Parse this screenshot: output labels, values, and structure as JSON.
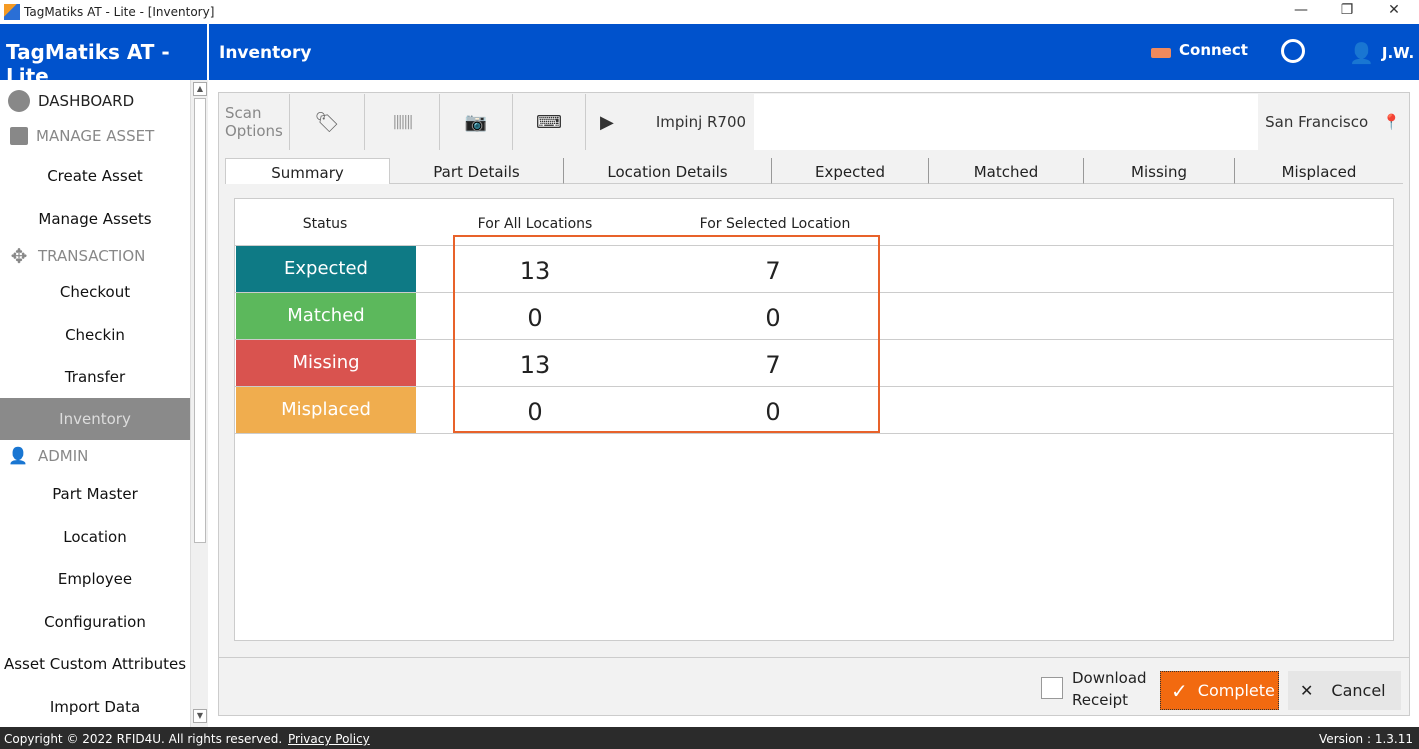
{
  "window": {
    "title": "TagMatiks AT - Lite - [Inventory]",
    "minimize": "—",
    "restore": "❐",
    "close": "✕"
  },
  "brand": "TagMatiks AT - Lite",
  "header": {
    "page_title": "Inventory",
    "connect": "Connect",
    "user": "J.W."
  },
  "sidebar": {
    "dashboard": "DASHBOARD",
    "manage_asset": "MANAGE ASSET",
    "create_asset": "Create Asset",
    "manage_assets": "Manage Assets",
    "transaction": "TRANSACTION",
    "checkout": "Checkout",
    "checkin": "Checkin",
    "transfer": "Transfer",
    "inventory": "Inventory",
    "admin": "ADMIN",
    "part_master": "Part Master",
    "location": "Location",
    "employee": "Employee",
    "configuration": "Configuration",
    "asset_custom_attributes": "Asset Custom Attributes",
    "import_data": "Import Data"
  },
  "toolbar": {
    "scan_options_1": "Scan",
    "scan_options_2": "Options",
    "reader": "Impinj R700",
    "location": "San Francisco"
  },
  "tabs": [
    "Summary",
    "Part Details",
    "Location Details",
    "Expected",
    "Matched",
    "Missing",
    "Misplaced"
  ],
  "summary": {
    "headers": [
      "Status",
      "For All Locations",
      "For Selected Location"
    ],
    "rows": [
      {
        "status": "Expected",
        "all": "13",
        "selected": "7",
        "color": "#0e7a85"
      },
      {
        "status": "Matched",
        "all": "0",
        "selected": "0",
        "color": "#5cb85c"
      },
      {
        "status": "Missing",
        "all": "13",
        "selected": "7",
        "color": "#d9534f"
      },
      {
        "status": "Misplaced",
        "all": "0",
        "selected": "0",
        "color": "#f0ad4e"
      }
    ]
  },
  "bottom": {
    "download_1": "Download",
    "download_2": "Receipt",
    "download_checked": false,
    "complete": "Complete",
    "cancel": "Cancel"
  },
  "footer": {
    "copyright": "Copyright © 2022 RFID4U. All rights reserved.",
    "privacy": "Privacy Policy",
    "version": "Version : 1.3.11"
  },
  "colors": {
    "brand": "#0052cc",
    "complete": "#f26a10"
  }
}
